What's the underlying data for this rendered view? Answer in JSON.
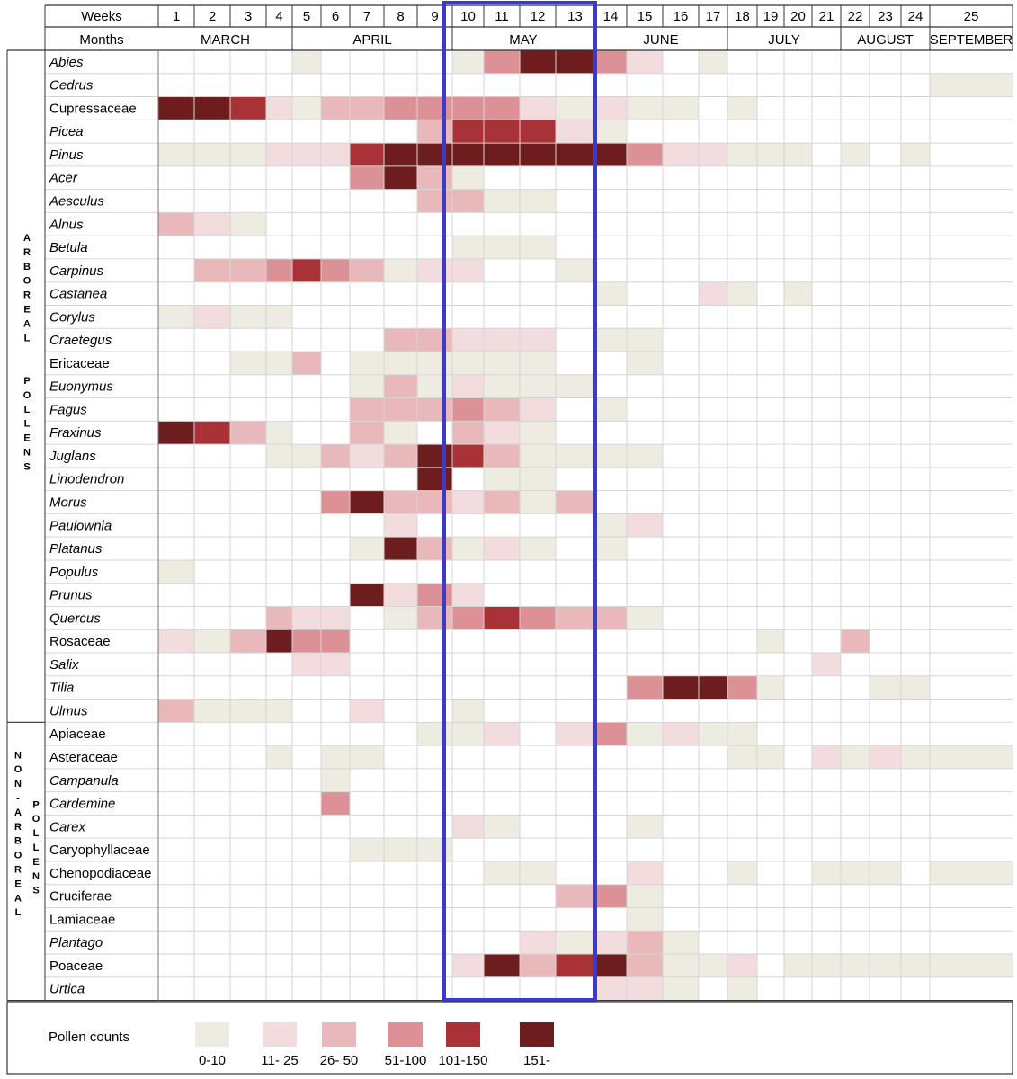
{
  "chart_data": {
    "type": "heatmap",
    "row_headers": {
      "weeks": "Weeks",
      "months": "Months"
    },
    "weeks": [
      "1",
      "2",
      "3",
      "4",
      "5",
      "6",
      "7",
      "8",
      "9",
      "10",
      "11",
      "12",
      "13",
      "14",
      "15",
      "16",
      "17",
      "18",
      "19",
      "20",
      "21",
      "22",
      "23",
      "24",
      "25"
    ],
    "months": [
      {
        "label": "MARCH",
        "from_week": 1,
        "to_week": 4
      },
      {
        "label": "APRIL",
        "from_week": 5,
        "to_week": 9
      },
      {
        "label": "MAY",
        "from_week": 10,
        "to_week": 13
      },
      {
        "label": "JUNE",
        "from_week": 14,
        "to_week": 17
      },
      {
        "label": "JULY",
        "from_week": 18,
        "to_week": 21
      },
      {
        "label": "AUGUST",
        "from_week": 22,
        "to_week": 24
      },
      {
        "label": "SEPTEMBER",
        "from_week": 25,
        "to_week": 25
      }
    ],
    "groups": [
      {
        "label": "ARBOREAL POLLENS",
        "from_row": 0,
        "to_row": 28
      },
      {
        "label": "NON-ARBOREAL POLLENS",
        "from_row": 29,
        "to_row": 40
      }
    ],
    "highlight": {
      "from_week": 10,
      "to_week": 13,
      "color": "#3a3acc"
    },
    "legend": {
      "title": "Pollen counts",
      "levels": [
        {
          "label": "0-10",
          "color": "#eeebe1"
        },
        {
          "label": "11- 25",
          "color": "#f3dcde"
        },
        {
          "label": "26- 50",
          "color": "#e8b8bb"
        },
        {
          "label": "51-100",
          "color": "#db9196"
        },
        {
          "label": "101-150",
          "color": "#a93236"
        },
        {
          "label": "151-",
          "color": "#6e1d1f"
        }
      ]
    },
    "rows": [
      {
        "name": "Abies",
        "italic": true,
        "levels": [
          0,
          0,
          0,
          0,
          1,
          0,
          0,
          0,
          0,
          1,
          4,
          6,
          6,
          4,
          2,
          0,
          1,
          0,
          0,
          0,
          0,
          0,
          0,
          0,
          0
        ]
      },
      {
        "name": "Cedrus",
        "italic": true,
        "levels": [
          0,
          0,
          0,
          0,
          0,
          0,
          0,
          0,
          0,
          0,
          0,
          0,
          0,
          0,
          0,
          0,
          0,
          0,
          0,
          0,
          0,
          0,
          0,
          0,
          1
        ]
      },
      {
        "name": "Cupressaceae",
        "italic": false,
        "levels": [
          6,
          6,
          5,
          2,
          1,
          3,
          3,
          4,
          4,
          4,
          4,
          2,
          1,
          2,
          1,
          1,
          0,
          1,
          0,
          0,
          0,
          0,
          0,
          0,
          0
        ]
      },
      {
        "name": "Picea",
        "italic": true,
        "levels": [
          0,
          0,
          0,
          0,
          0,
          0,
          0,
          0,
          3,
          5,
          5,
          5,
          2,
          1,
          0,
          0,
          0,
          0,
          0,
          0,
          0,
          0,
          0,
          0,
          0
        ]
      },
      {
        "name": "Pinus",
        "italic": true,
        "levels": [
          1,
          1,
          1,
          2,
          2,
          2,
          5,
          6,
          6,
          6,
          6,
          6,
          6,
          6,
          4,
          2,
          2,
          1,
          1,
          1,
          0,
          1,
          0,
          1,
          0
        ]
      },
      {
        "name": "Acer",
        "italic": true,
        "levels": [
          0,
          0,
          0,
          0,
          0,
          0,
          4,
          6,
          3,
          1,
          0,
          0,
          0,
          0,
          0,
          0,
          0,
          0,
          0,
          0,
          0,
          0,
          0,
          0,
          0
        ]
      },
      {
        "name": "Aesculus",
        "italic": true,
        "levels": [
          0,
          0,
          0,
          0,
          0,
          0,
          0,
          0,
          3,
          3,
          1,
          1,
          0,
          0,
          0,
          0,
          0,
          0,
          0,
          0,
          0,
          0,
          0,
          0,
          0
        ]
      },
      {
        "name": "Alnus",
        "italic": true,
        "levels": [
          3,
          2,
          1,
          0,
          0,
          0,
          0,
          0,
          0,
          0,
          0,
          0,
          0,
          0,
          0,
          0,
          0,
          0,
          0,
          0,
          0,
          0,
          0,
          0,
          0
        ]
      },
      {
        "name": "Betula",
        "italic": true,
        "levels": [
          0,
          0,
          0,
          0,
          0,
          0,
          0,
          0,
          0,
          1,
          1,
          1,
          0,
          0,
          0,
          0,
          0,
          0,
          0,
          0,
          0,
          0,
          0,
          0,
          0
        ]
      },
      {
        "name": "Carpinus",
        "italic": true,
        "levels": [
          0,
          3,
          3,
          4,
          5,
          4,
          3,
          1,
          2,
          2,
          0,
          0,
          1,
          0,
          0,
          0,
          0,
          0,
          0,
          0,
          0,
          0,
          0,
          0,
          0
        ]
      },
      {
        "name": "Castanea",
        "italic": true,
        "levels": [
          0,
          0,
          0,
          0,
          0,
          0,
          0,
          0,
          0,
          0,
          0,
          0,
          0,
          1,
          0,
          0,
          2,
          1,
          0,
          1,
          0,
          0,
          0,
          0,
          0
        ]
      },
      {
        "name": "Corylus",
        "italic": true,
        "levels": [
          1,
          2,
          1,
          1,
          0,
          0,
          0,
          0,
          0,
          0,
          0,
          0,
          0,
          0,
          0,
          0,
          0,
          0,
          0,
          0,
          0,
          0,
          0,
          0,
          0
        ]
      },
      {
        "name": "Craetegus",
        "italic": true,
        "levels": [
          0,
          0,
          0,
          0,
          0,
          0,
          0,
          3,
          3,
          2,
          2,
          2,
          0,
          1,
          1,
          0,
          0,
          0,
          0,
          0,
          0,
          0,
          0,
          0,
          0
        ]
      },
      {
        "name": "Ericaceae",
        "italic": false,
        "levels": [
          0,
          0,
          1,
          1,
          3,
          0,
          1,
          1,
          1,
          1,
          1,
          1,
          0,
          0,
          1,
          0,
          0,
          0,
          0,
          0,
          0,
          0,
          0,
          0,
          0
        ]
      },
      {
        "name": "Euonymus",
        "italic": true,
        "levels": [
          0,
          0,
          0,
          0,
          0,
          0,
          1,
          3,
          1,
          2,
          1,
          1,
          1,
          0,
          0,
          0,
          0,
          0,
          0,
          0,
          0,
          0,
          0,
          0,
          0
        ]
      },
      {
        "name": "Fagus",
        "italic": true,
        "levels": [
          0,
          0,
          0,
          0,
          0,
          0,
          3,
          3,
          3,
          4,
          3,
          2,
          0,
          1,
          0,
          0,
          0,
          0,
          0,
          0,
          0,
          0,
          0,
          0,
          0
        ]
      },
      {
        "name": "Fraxinus",
        "italic": true,
        "levels": [
          6,
          5,
          3,
          1,
          0,
          0,
          3,
          1,
          0,
          3,
          2,
          1,
          0,
          0,
          0,
          0,
          0,
          0,
          0,
          0,
          0,
          0,
          0,
          0,
          0
        ]
      },
      {
        "name": "Juglans",
        "italic": true,
        "levels": [
          0,
          0,
          0,
          1,
          1,
          3,
          2,
          3,
          6,
          5,
          3,
          1,
          1,
          1,
          1,
          0,
          0,
          0,
          0,
          0,
          0,
          0,
          0,
          0,
          0
        ]
      },
      {
        "name": "Liriodendron",
        "italic": true,
        "levels": [
          0,
          0,
          0,
          0,
          0,
          0,
          0,
          0,
          6,
          0,
          1,
          1,
          0,
          0,
          0,
          0,
          0,
          0,
          0,
          0,
          0,
          0,
          0,
          0,
          0
        ]
      },
      {
        "name": "Morus",
        "italic": true,
        "levels": [
          0,
          0,
          0,
          0,
          0,
          4,
          6,
          3,
          3,
          2,
          3,
          1,
          3,
          0,
          0,
          0,
          0,
          0,
          0,
          0,
          0,
          0,
          0,
          0,
          0
        ]
      },
      {
        "name": "Paulownia",
        "italic": true,
        "levels": [
          0,
          0,
          0,
          0,
          0,
          0,
          0,
          2,
          0,
          0,
          0,
          0,
          0,
          1,
          2,
          0,
          0,
          0,
          0,
          0,
          0,
          0,
          0,
          0,
          0
        ]
      },
      {
        "name": "Platanus",
        "italic": true,
        "levels": [
          0,
          0,
          0,
          0,
          0,
          0,
          1,
          6,
          3,
          1,
          2,
          1,
          0,
          1,
          0,
          0,
          0,
          0,
          0,
          0,
          0,
          0,
          0,
          0,
          0
        ]
      },
      {
        "name": "Populus",
        "italic": true,
        "levels": [
          1,
          0,
          0,
          0,
          0,
          0,
          0,
          0,
          0,
          0,
          0,
          0,
          0,
          0,
          0,
          0,
          0,
          0,
          0,
          0,
          0,
          0,
          0,
          0,
          0
        ]
      },
      {
        "name": "Prunus",
        "italic": true,
        "levels": [
          0,
          0,
          0,
          0,
          0,
          0,
          6,
          2,
          4,
          2,
          0,
          0,
          0,
          0,
          0,
          0,
          0,
          0,
          0,
          0,
          0,
          0,
          0,
          0,
          0
        ]
      },
      {
        "name": "Quercus",
        "italic": true,
        "levels": [
          0,
          0,
          0,
          3,
          2,
          2,
          0,
          1,
          3,
          4,
          5,
          4,
          3,
          3,
          1,
          0,
          0,
          0,
          0,
          0,
          0,
          0,
          0,
          0,
          0
        ]
      },
      {
        "name": "Rosaceae",
        "italic": false,
        "levels": [
          2,
          1,
          3,
          6,
          4,
          4,
          0,
          0,
          0,
          0,
          0,
          0,
          0,
          0,
          0,
          0,
          0,
          0,
          1,
          0,
          0,
          3,
          0,
          0,
          0
        ]
      },
      {
        "name": "Salix",
        "italic": true,
        "levels": [
          0,
          0,
          0,
          0,
          2,
          2,
          0,
          0,
          0,
          0,
          0,
          0,
          0,
          0,
          0,
          0,
          0,
          0,
          0,
          0,
          2,
          0,
          0,
          0,
          0
        ]
      },
      {
        "name": "Tilia",
        "italic": true,
        "levels": [
          0,
          0,
          0,
          0,
          0,
          0,
          0,
          0,
          0,
          0,
          0,
          0,
          0,
          0,
          4,
          6,
          6,
          4,
          1,
          0,
          0,
          0,
          1,
          1,
          0
        ]
      },
      {
        "name": "Ulmus",
        "italic": true,
        "levels": [
          3,
          1,
          1,
          1,
          0,
          0,
          2,
          0,
          0,
          1,
          0,
          0,
          0,
          0,
          0,
          0,
          0,
          0,
          0,
          0,
          0,
          0,
          0,
          0,
          0
        ]
      },
      {
        "name": "Apiaceae",
        "italic": false,
        "levels": [
          0,
          0,
          0,
          0,
          0,
          0,
          0,
          0,
          1,
          1,
          2,
          0,
          2,
          4,
          1,
          2,
          1,
          1,
          0,
          0,
          0,
          0,
          0,
          0,
          0
        ]
      },
      {
        "name": "Asteraceae",
        "italic": false,
        "levels": [
          0,
          0,
          0,
          1,
          0,
          1,
          1,
          0,
          0,
          0,
          0,
          0,
          0,
          0,
          0,
          0,
          0,
          1,
          1,
          0,
          2,
          1,
          2,
          1,
          1
        ]
      },
      {
        "name": "Campanula",
        "italic": true,
        "levels": [
          0,
          0,
          0,
          0,
          0,
          1,
          0,
          0,
          0,
          0,
          0,
          0,
          0,
          0,
          0,
          0,
          0,
          0,
          0,
          0,
          0,
          0,
          0,
          0,
          0
        ]
      },
      {
        "name": "Cardemine",
        "italic": true,
        "levels": [
          0,
          0,
          0,
          0,
          0,
          4,
          0,
          0,
          0,
          0,
          0,
          0,
          0,
          0,
          0,
          0,
          0,
          0,
          0,
          0,
          0,
          0,
          0,
          0,
          0
        ]
      },
      {
        "name": "Carex",
        "italic": true,
        "levels": [
          0,
          0,
          0,
          0,
          0,
          0,
          0,
          0,
          0,
          2,
          1,
          0,
          0,
          0,
          1,
          0,
          0,
          0,
          0,
          0,
          0,
          0,
          0,
          0,
          0
        ]
      },
      {
        "name": "Caryophyllaceae",
        "italic": false,
        "levels": [
          0,
          0,
          0,
          0,
          0,
          0,
          1,
          1,
          1,
          0,
          0,
          0,
          0,
          0,
          0,
          0,
          0,
          0,
          0,
          0,
          0,
          0,
          0,
          0,
          0
        ]
      },
      {
        "name": "Chenopodiaceae",
        "italic": false,
        "levels": [
          0,
          0,
          0,
          0,
          0,
          0,
          0,
          0,
          0,
          0,
          1,
          1,
          0,
          0,
          2,
          0,
          0,
          1,
          0,
          0,
          1,
          1,
          1,
          0,
          1
        ]
      },
      {
        "name": "Cruciferae",
        "italic": false,
        "levels": [
          0,
          0,
          0,
          0,
          0,
          0,
          0,
          0,
          0,
          0,
          0,
          0,
          3,
          4,
          1,
          0,
          0,
          0,
          0,
          0,
          0,
          0,
          0,
          0,
          0
        ]
      },
      {
        "name": "Lamiaceae",
        "italic": false,
        "levels": [
          0,
          0,
          0,
          0,
          0,
          0,
          0,
          0,
          0,
          0,
          0,
          0,
          0,
          0,
          1,
          0,
          0,
          0,
          0,
          0,
          0,
          0,
          0,
          0,
          0
        ]
      },
      {
        "name": "Plantago",
        "italic": true,
        "levels": [
          0,
          0,
          0,
          0,
          0,
          0,
          0,
          0,
          0,
          0,
          0,
          2,
          1,
          2,
          3,
          1,
          0,
          0,
          0,
          0,
          0,
          0,
          0,
          0,
          0
        ]
      },
      {
        "name": "Poaceae",
        "italic": false,
        "levels": [
          0,
          0,
          0,
          0,
          0,
          0,
          0,
          0,
          0,
          2,
          6,
          3,
          5,
          6,
          3,
          1,
          1,
          2,
          0,
          1,
          1,
          1,
          1,
          1,
          1
        ]
      },
      {
        "name": "Urtica",
        "italic": true,
        "levels": [
          0,
          0,
          0,
          0,
          0,
          0,
          0,
          0,
          0,
          0,
          0,
          0,
          0,
          2,
          2,
          1,
          0,
          1,
          0,
          0,
          0,
          0,
          0,
          0,
          0
        ]
      }
    ]
  }
}
